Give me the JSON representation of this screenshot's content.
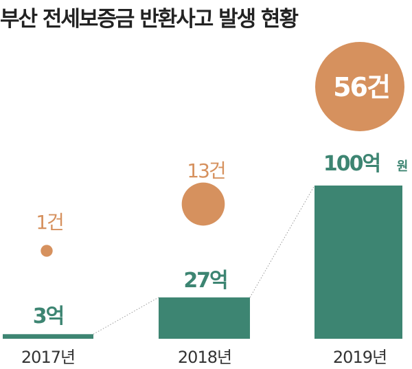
{
  "title": "부산 전세보증금 반환사고 발생 현황",
  "colors": {
    "bar": "#3d8572",
    "bubble": "#d6915e",
    "connector": "#9a9a9a",
    "year_text": "#333333",
    "amount_text": "#3d8572",
    "count_text": "#d6915e",
    "count_big_text": "#ffffff"
  },
  "chart_data": {
    "type": "bar",
    "title": "부산 전세보증금 반환사고 발생 현황",
    "categories": [
      "2017년",
      "2018년",
      "2019년"
    ],
    "series": [
      {
        "values": [
          3,
          27,
          100
        ],
        "labels": [
          "3억",
          "27억",
          "100억"
        ]
      },
      {
        "values": [
          1,
          13,
          56
        ],
        "labels": [
          "1건",
          "13건",
          "56건"
        ]
      }
    ],
    "extra_unit_label": "원"
  }
}
